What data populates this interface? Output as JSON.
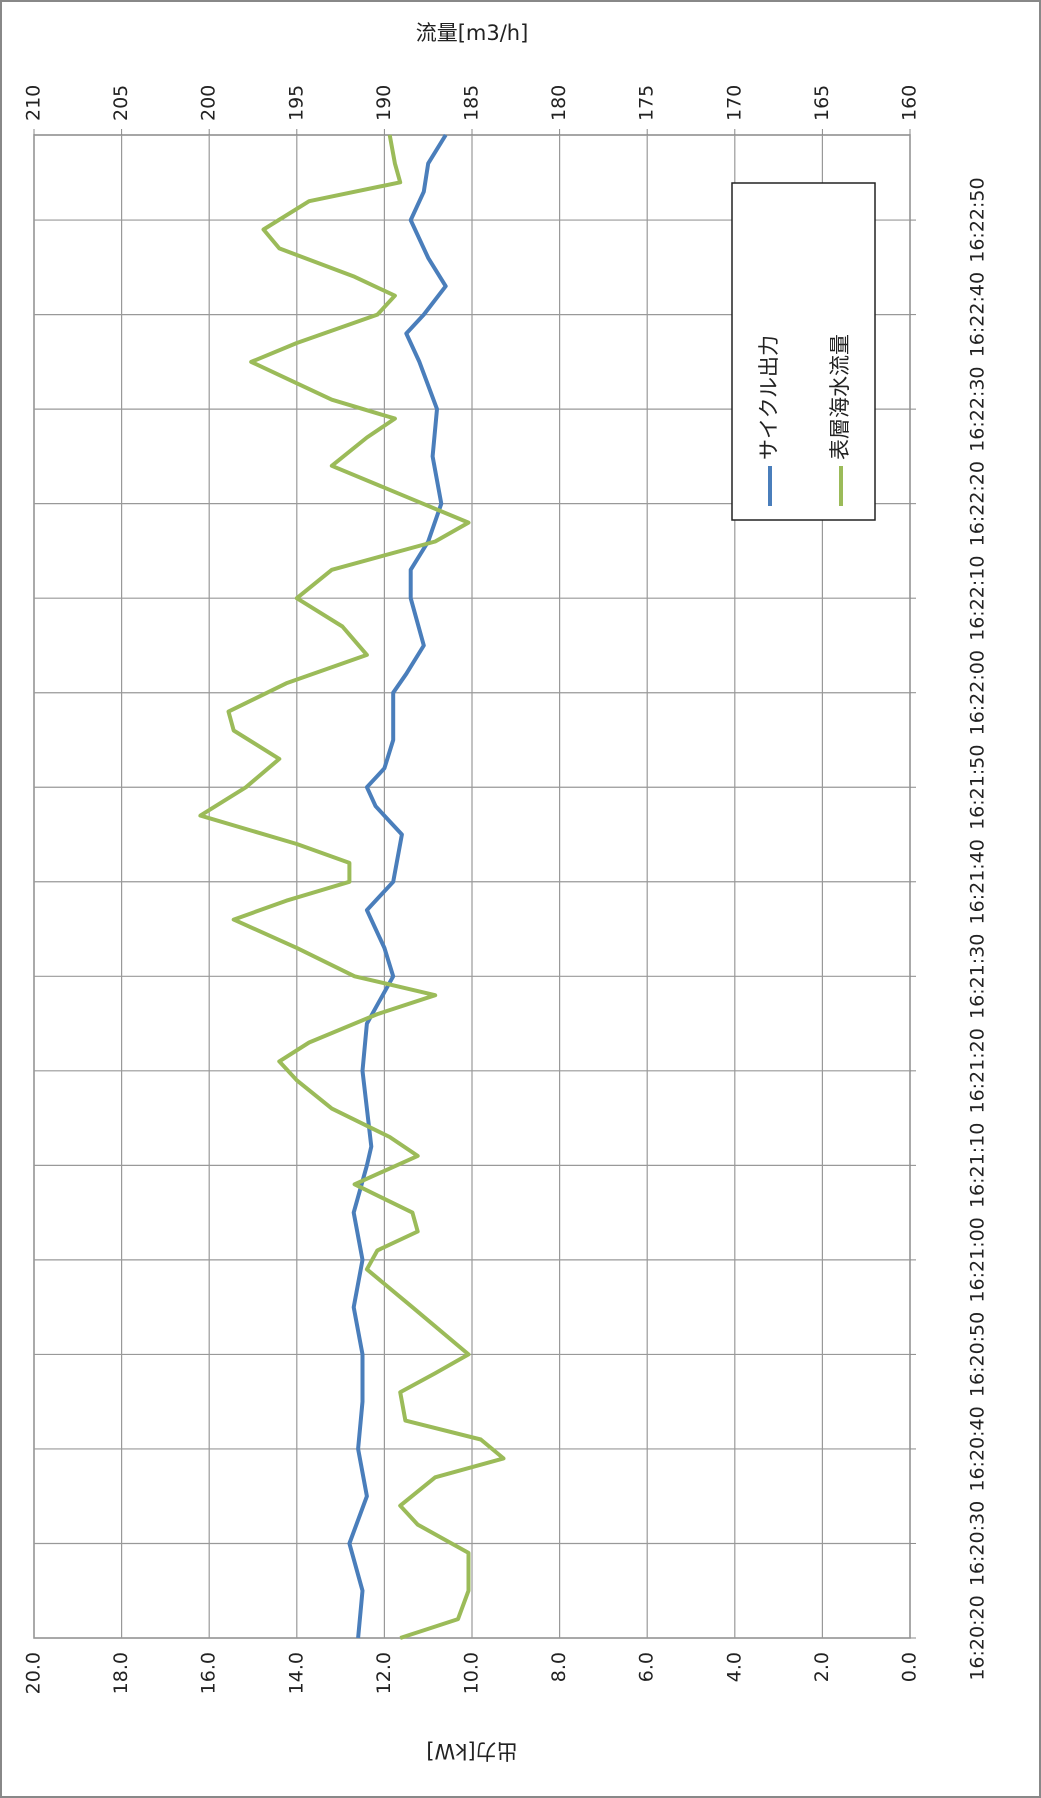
{
  "chart_data": {
    "type": "line",
    "y_label": "出力[kW]",
    "y2_label": "流量[m3/h]",
    "xlim": [
      "16:20:20",
      "16:22:59"
    ],
    "xticks": [
      "16:20:20",
      "16:20:30",
      "16:20:40",
      "16:20:50",
      "16:21:00",
      "16:21:10",
      "16:21:20",
      "16:21:30",
      "16:21:40",
      "16:21:50",
      "16:22:00",
      "16:22:10",
      "16:22:20",
      "16:22:30",
      "16:22:40",
      "16:22:50"
    ],
    "ylim": [
      0,
      20
    ],
    "yticks": [
      {
        "value": 0,
        "label": "0.0"
      },
      {
        "value": 2,
        "label": "2.0"
      },
      {
        "value": 4,
        "label": "4.0"
      },
      {
        "value": 6,
        "label": "6.0"
      },
      {
        "value": 8,
        "label": "8.0"
      },
      {
        "value": 10,
        "label": "10.0"
      },
      {
        "value": 12,
        "label": "12.0"
      },
      {
        "value": 14,
        "label": "14.0"
      },
      {
        "value": 16,
        "label": "16.0"
      },
      {
        "value": 18,
        "label": "18.0"
      },
      {
        "value": 20,
        "label": "20.0"
      }
    ],
    "y2lim": [
      160,
      210
    ],
    "y2ticks": [
      160,
      165,
      170,
      175,
      180,
      185,
      190,
      195,
      200,
      205,
      210
    ],
    "grid": true,
    "legend": "upper right",
    "series": [
      {
        "name": "サイクル出力",
        "color": "#4a7ebb",
        "x": [
          "16:20:20",
          "16:20:25",
          "16:20:30",
          "16:20:35",
          "16:20:40",
          "16:20:45",
          "16:20:50",
          "16:20:55",
          "16:21:00",
          "16:21:05",
          "16:21:10",
          "16:21:12",
          "16:21:20",
          "16:21:25",
          "16:21:30",
          "16:21:33",
          "16:21:37",
          "16:21:40",
          "16:21:45",
          "16:21:48",
          "16:21:50",
          "16:21:52",
          "16:21:55",
          "16:22:00",
          "16:22:02",
          "16:22:05",
          "16:22:10",
          "16:22:13",
          "16:22:16",
          "16:22:20",
          "16:22:25",
          "16:22:30",
          "16:22:35",
          "16:22:38",
          "16:22:40",
          "16:22:43",
          "16:22:46",
          "16:22:50",
          "16:22:53",
          "16:22:56",
          "16:22:59"
        ],
        "values": [
          12.6,
          12.5,
          12.8,
          12.4,
          12.6,
          12.5,
          12.5,
          12.7,
          12.5,
          12.7,
          12.4,
          12.3,
          12.5,
          12.4,
          11.8,
          12.0,
          12.4,
          11.8,
          11.6,
          12.2,
          12.4,
          12.0,
          11.8,
          11.8,
          11.5,
          11.1,
          11.4,
          11.4,
          11.0,
          10.7,
          10.9,
          10.8,
          11.2,
          11.5,
          11.1,
          10.6,
          11.0,
          11.4,
          11.1,
          11.0,
          10.6
        ]
      },
      {
        "name": "表層海水流量",
        "color": "#9bbb59",
        "axis": "y2",
        "x": [
          "16:20:20",
          "16:20:22",
          "16:20:25",
          "16:20:29",
          "16:20:32",
          "16:20:34",
          "16:20:37",
          "16:20:39",
          "16:20:41",
          "16:20:43",
          "16:20:46",
          "16:20:48",
          "16:20:50",
          "16:20:55",
          "16:20:59",
          "16:21:01",
          "16:21:03",
          "16:21:05",
          "16:21:08",
          "16:21:11",
          "16:21:13",
          "16:21:16",
          "16:21:19",
          "16:21:21",
          "16:21:23",
          "16:21:26",
          "16:21:28",
          "16:21:30",
          "16:21:33",
          "16:21:36",
          "16:21:38",
          "16:21:40",
          "16:21:42",
          "16:21:44",
          "16:21:47",
          "16:21:50",
          "16:21:53",
          "16:21:56",
          "16:21:58",
          "16:22:01",
          "16:22:04",
          "16:22:07",
          "16:22:10",
          "16:22:13",
          "16:22:16",
          "16:22:18",
          "16:22:20",
          "16:22:24",
          "16:22:27",
          "16:22:29",
          "16:22:31",
          "16:22:35",
          "16:22:37",
          "16:22:40",
          "16:22:42",
          "16:22:44",
          "16:22:47",
          "16:22:49",
          "16:22:52",
          "16:22:54",
          "16:22:56",
          "16:22:59"
        ],
        "values": [
          189.1,
          185.8,
          185.2,
          185.2,
          188.1,
          189.1,
          187.1,
          183.2,
          184.5,
          188.8,
          189.1,
          187.1,
          185.2,
          188.4,
          191.0,
          190.4,
          188.1,
          188.4,
          191.7,
          188.1,
          189.7,
          193.0,
          195.0,
          196.0,
          194.3,
          190.4,
          187.1,
          191.7,
          195.0,
          198.6,
          195.6,
          192.0,
          192.0,
          195.0,
          200.5,
          197.9,
          196.0,
          198.6,
          198.9,
          195.6,
          191.0,
          192.4,
          195.0,
          193.0,
          187.1,
          185.2,
          187.8,
          193.0,
          191.0,
          189.4,
          193.0,
          197.6,
          195.0,
          190.4,
          189.4,
          191.7,
          196.0,
          196.9,
          194.3,
          189.1,
          189.4,
          189.7
        ]
      }
    ]
  }
}
